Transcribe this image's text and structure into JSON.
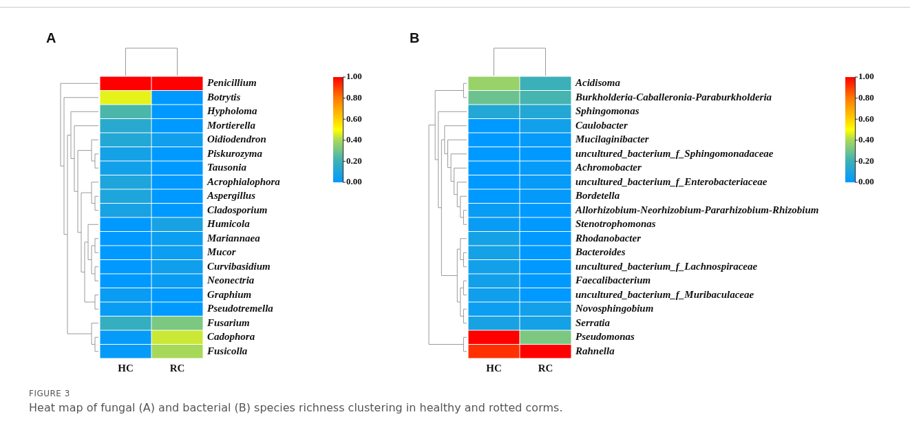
{
  "chart_data": [
    {
      "type": "heatmap",
      "title": "A",
      "categories": [
        "HC",
        "RC"
      ],
      "y_categories": [
        "Penicillium",
        "Botrytis",
        "Hypholoma",
        "Mortierella",
        "Oidiodendron",
        "Piskurozyma",
        "Tausonia",
        "Acrophialophora",
        "Aspergillus",
        "Cladosporium",
        "Humicola",
        "Mariannaea",
        "Mucor",
        "Curvibasidium",
        "Neonectria",
        "Graphium",
        "Pseudotremella",
        "Fusarium",
        "Cadophora",
        "Fusicolla"
      ],
      "cells": [
        [
          1,
          1
        ],
        [
          0.47,
          0
        ],
        [
          0.23,
          0
        ],
        [
          0.14,
          0
        ],
        [
          0.12,
          0.05
        ],
        [
          0.07,
          0
        ],
        [
          0.06,
          0
        ],
        [
          0.1,
          0
        ],
        [
          0.1,
          0
        ],
        [
          0.08,
          0
        ],
        [
          0,
          0.08
        ],
        [
          0,
          0.04
        ],
        [
          0,
          0.04
        ],
        [
          0,
          0.05
        ],
        [
          0,
          0.03
        ],
        [
          0.03,
          0
        ],
        [
          0.03,
          0
        ],
        [
          0.18,
          0.32
        ],
        [
          0.02,
          0.44
        ],
        [
          0.02,
          0.4
        ]
      ],
      "clim": [
        0,
        1
      ],
      "cticks": [
        {
          "value": 0,
          "label": "0.00"
        },
        {
          "value": 0.2,
          "label": "0.20"
        },
        {
          "value": 0.4,
          "label": "0.40"
        },
        {
          "value": 0.6,
          "label": "0.60"
        },
        {
          "value": 0.8,
          "label": "0.80"
        },
        {
          "value": 1,
          "label": "1.00"
        }
      ],
      "annotations": [
        "FIGURE 3",
        "Heat map of fungal (A) and bacterial (B) species richness clustering in healthy and rotted corms."
      ]
    },
    {
      "type": "heatmap",
      "title": "B",
      "categories": [
        "HC",
        "RC"
      ],
      "y_categories": [
        "Acidisoma",
        "Burkholderia-Caballeronia-Paraburkholderia",
        "Sphingomonas",
        "Caulobacter",
        "Mucilaginibacter",
        "uncultured_bacterium_f_Sphingomonadaceae",
        "Achromobacter",
        "uncultured_bacterium_f_Enterobacteriaceae",
        "Bordetella",
        "Allorhizobium-Neorhizobium-Pararhizobium-Rhizobium",
        "Stenotrophomonas",
        "Rhodanobacter",
        "Bacteroides",
        "uncultured_bacterium_f_Lachnospiraceae",
        "Faecalibacterium",
        "uncultured_bacterium_f_Muribaculaceae",
        "Novosphingobium",
        "Serratia",
        "Pseudomonas",
        "Rahnella"
      ],
      "cells": [
        [
          0.37,
          0.2
        ],
        [
          0.29,
          0.22
        ],
        [
          0.12,
          0.12
        ],
        [
          0,
          0.06
        ],
        [
          0,
          0.02
        ],
        [
          0,
          0
        ],
        [
          0,
          0.02
        ],
        [
          0,
          0.02
        ],
        [
          0,
          0.01
        ],
        [
          0.03,
          0
        ],
        [
          0.03,
          0
        ],
        [
          0.07,
          0
        ],
        [
          0.07,
          0
        ],
        [
          0.06,
          0
        ],
        [
          0.06,
          0
        ],
        [
          0.05,
          0
        ],
        [
          0.04,
          0.06
        ],
        [
          0.08,
          0.07
        ],
        [
          1,
          0.32
        ],
        [
          0.92,
          1
        ]
      ],
      "clim": [
        0,
        1
      ],
      "cticks": [
        {
          "value": 0,
          "label": "0.00"
        },
        {
          "value": 0.2,
          "label": "0.20"
        },
        {
          "value": 0.4,
          "label": "0.40"
        },
        {
          "value": 0.6,
          "label": "0.60"
        },
        {
          "value": 0.8,
          "label": "0.80"
        },
        {
          "value": 1,
          "label": "1.00"
        }
      ]
    }
  ]
}
